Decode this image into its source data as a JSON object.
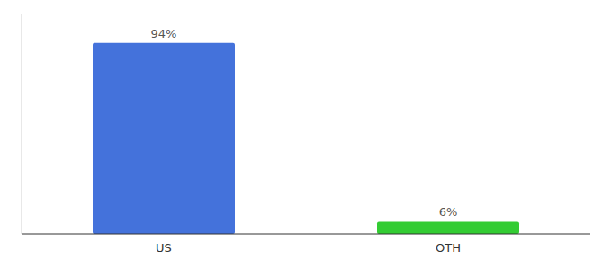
{
  "chart_data": {
    "type": "bar",
    "categories": [
      "US",
      "OTH"
    ],
    "values": [
      94,
      6
    ],
    "value_labels": [
      "94%",
      "6%"
    ],
    "colors": [
      "#4472db",
      "#33cc33"
    ],
    "ylim": [
      0,
      108
    ],
    "data_labels": true,
    "tick_labels": "x",
    "grid": false
  }
}
